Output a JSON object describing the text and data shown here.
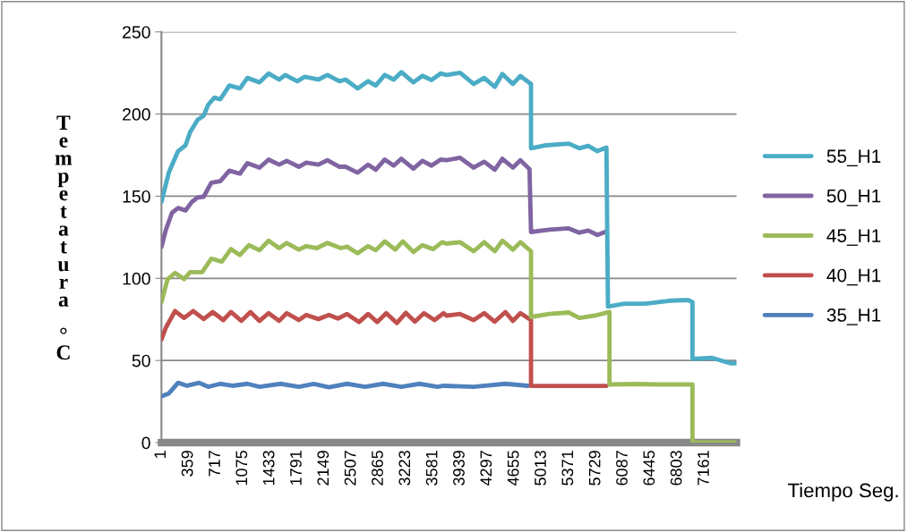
{
  "chart_data": {
    "type": "line",
    "xlabel": "Tiempo Seg.",
    "ylabel": "Tempetatura °C",
    "xlim": [
      1,
      7580
    ],
    "xticks": [
      1,
      359,
      717,
      1075,
      1433,
      1791,
      2149,
      2507,
      2865,
      3223,
      3581,
      3939,
      4297,
      4655,
      5013,
      5371,
      5729,
      6087,
      6445,
      6803,
      7161
    ],
    "ylim": [
      0,
      250
    ],
    "yticks": [
      0,
      50,
      100,
      150,
      200,
      250
    ],
    "grid": "y",
    "legend": "right",
    "marker": "none",
    "line_style": "solid",
    "series": [
      {
        "name": "55_H1",
        "color": "#4bacc6",
        "x": [
          1,
          100,
          220,
          319,
          379,
          478,
          558,
          617,
          697,
          777,
          896,
          1035,
          1134,
          1294,
          1413,
          1552,
          1632,
          1791,
          1890,
          2069,
          2188,
          2347,
          2427,
          2586,
          2725,
          2825,
          2944,
          3063,
          3163,
          3322,
          3441,
          3560,
          3680,
          3759,
          3937,
          4116,
          4255,
          4394,
          4494,
          4633,
          4732,
          4872,
          4872,
          5071,
          5369,
          5508,
          5627,
          5747,
          5866,
          5886,
          6105,
          6383,
          6701,
          6940,
          7000,
          7000,
          7258,
          7497,
          7577
        ],
        "values": [
          146.5,
          164.7,
          177.4,
          181,
          189,
          196.5,
          199,
          205.6,
          210,
          209,
          217.4,
          215.6,
          222,
          219.3,
          224.7,
          221,
          223.8,
          220,
          222.7,
          221,
          223.8,
          220,
          221,
          215.6,
          220,
          217.4,
          223.8,
          221,
          225.5,
          219.3,
          223.3,
          220.7,
          224.7,
          223.8,
          225.1,
          218.3,
          222,
          216.5,
          224.4,
          218.3,
          223.2,
          218.3,
          179.2,
          181,
          182,
          179.2,
          180.6,
          177.4,
          179.6,
          82.8,
          84.6,
          84.6,
          86.4,
          86.8,
          85.5,
          51,
          51.6,
          48.3,
          48.3
        ]
      },
      {
        "name": "50_H1",
        "color": "#8064a2",
        "x": [
          1,
          60,
          140,
          220,
          319,
          399,
          478,
          558,
          658,
          777,
          896,
          1035,
          1134,
          1294,
          1413,
          1552,
          1652,
          1811,
          1910,
          2069,
          2188,
          2347,
          2427,
          2586,
          2725,
          2825,
          2944,
          3063,
          3163,
          3322,
          3441,
          3560,
          3680,
          3759,
          3937,
          4116,
          4255,
          4394,
          4494,
          4633,
          4732,
          4852,
          4872,
          5111,
          5369,
          5508,
          5627,
          5747,
          5846
        ],
        "values": [
          119.2,
          129.6,
          139.9,
          142.8,
          141.3,
          146.4,
          149.2,
          149.7,
          158.2,
          159.2,
          165.5,
          163.7,
          170.1,
          167.4,
          172.3,
          169.2,
          171.5,
          167.9,
          170.4,
          169.2,
          171.9,
          167.9,
          167.9,
          164.3,
          169.2,
          166.1,
          172.3,
          168.6,
          172.8,
          166.8,
          171.5,
          168.6,
          172.3,
          171.9,
          173.4,
          167.4,
          171,
          166.1,
          172.8,
          167.4,
          171.9,
          166.5,
          128.2,
          129.6,
          130.4,
          127.8,
          129.1,
          126.4,
          128.2
        ]
      },
      {
        "name": "45_H1",
        "color": "#9bbb59",
        "x": [
          1,
          80,
          180,
          299,
          379,
          538,
          658,
          797,
          916,
          1035,
          1155,
          1294,
          1413,
          1552,
          1652,
          1811,
          1910,
          2049,
          2188,
          2367,
          2447,
          2586,
          2725,
          2825,
          2944,
          3083,
          3183,
          3322,
          3441,
          3580,
          3700,
          3759,
          3937,
          4116,
          4255,
          4394,
          4494,
          4633,
          4732,
          4872,
          4872,
          5111,
          5369,
          5508,
          5707,
          5906,
          5906,
          6264,
          6542,
          7000,
          7000,
          7577
        ],
        "values": [
          85.5,
          99.3,
          103.3,
          99.6,
          103.8,
          103.8,
          112,
          110.2,
          117.8,
          114.2,
          120.2,
          117.1,
          122.9,
          118.4,
          121.5,
          117.5,
          119.6,
          118.4,
          121.5,
          118.4,
          119.3,
          115.3,
          119.6,
          117.1,
          122.5,
          117.5,
          122.5,
          116,
          120.2,
          117.8,
          122,
          121.1,
          122,
          116.5,
          122,
          116.5,
          122.9,
          117.5,
          122,
          116.5,
          76.5,
          78.3,
          79.2,
          75.9,
          77.3,
          79.5,
          35.4,
          35.7,
          35.4,
          35.4,
          0,
          0
        ]
      },
      {
        "name": "40_H1",
        "color": "#c0504d",
        "x": [
          1,
          60,
          180,
          299,
          419,
          558,
          677,
          816,
          916,
          1055,
          1174,
          1294,
          1413,
          1552,
          1652,
          1811,
          1910,
          2069,
          2208,
          2327,
          2447,
          2606,
          2725,
          2844,
          2964,
          3103,
          3222,
          3342,
          3461,
          3600,
          3720,
          3759,
          3937,
          4116,
          4255,
          4394,
          4534,
          4633,
          4732,
          4872,
          4872,
          5190,
          5508,
          5866
        ],
        "values": [
          62.8,
          70.1,
          80.1,
          75.9,
          80.1,
          75.2,
          79.5,
          74.6,
          79.5,
          74.1,
          79.5,
          74.1,
          78.8,
          74.1,
          78.8,
          74.6,
          77.7,
          75.2,
          77.7,
          75.5,
          78.3,
          73.4,
          78.3,
          73.4,
          78.8,
          72.8,
          79,
          73.6,
          78.8,
          74.6,
          78.8,
          77.3,
          78.3,
          74.6,
          78.8,
          73.6,
          79.5,
          74.1,
          78.8,
          74.6,
          34.5,
          34.5,
          34.5,
          34.5
        ]
      },
      {
        "name": "35_H1",
        "color": "#4f81bd",
        "x": [
          1,
          100,
          220,
          339,
          498,
          617,
          777,
          936,
          1134,
          1294,
          1572,
          1811,
          2009,
          2208,
          2447,
          2685,
          2924,
          3163,
          3402,
          3640,
          3719,
          4116,
          4534,
          4832
        ],
        "values": [
          28.2,
          30,
          36.4,
          34.6,
          36.4,
          34,
          35.8,
          34.6,
          35.8,
          34,
          35.8,
          34,
          35.8,
          33.7,
          35.8,
          34,
          35.8,
          34,
          35.8,
          34,
          34.6,
          34,
          35.8,
          34.6
        ]
      }
    ]
  }
}
